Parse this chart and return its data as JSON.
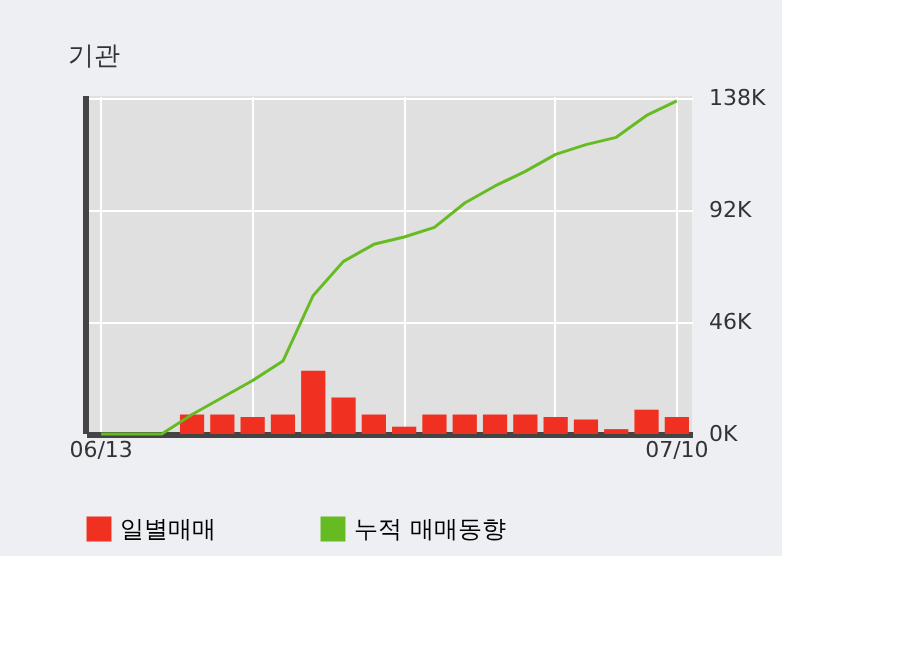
{
  "chart_data": {
    "type": "bar",
    "title": "기관",
    "categories": [
      "06/13",
      null,
      null,
      null,
      null,
      null,
      null,
      null,
      null,
      null,
      null,
      null,
      null,
      null,
      null,
      null,
      null,
      null,
      null,
      "07/10"
    ],
    "series": [
      {
        "name": "일별매매",
        "color": "#f03020",
        "values": [
          null,
          null,
          null,
          8,
          8,
          7,
          8,
          26,
          15,
          8,
          3,
          8,
          8,
          8,
          8,
          7,
          6,
          2,
          10,
          7
        ]
      },
      {
        "name": "누적 매매동향",
        "type": "line",
        "color": "#66bb22",
        "values": [
          0,
          0,
          0,
          8,
          15,
          22,
          30,
          57,
          71,
          78,
          81,
          85,
          95,
          102,
          108,
          115,
          119,
          122,
          131,
          137
        ]
      }
    ],
    "ylim": [
      0,
      139
    ],
    "yticks": [
      {
        "value": 0,
        "label": "0K"
      },
      {
        "value": 46,
        "label": "46K"
      },
      {
        "value": 92,
        "label": "92K"
      },
      {
        "value": 138,
        "label": "138K"
      }
    ],
    "grid": true,
    "legend": "bottom",
    "marker": "none",
    "line_style": "solid"
  }
}
